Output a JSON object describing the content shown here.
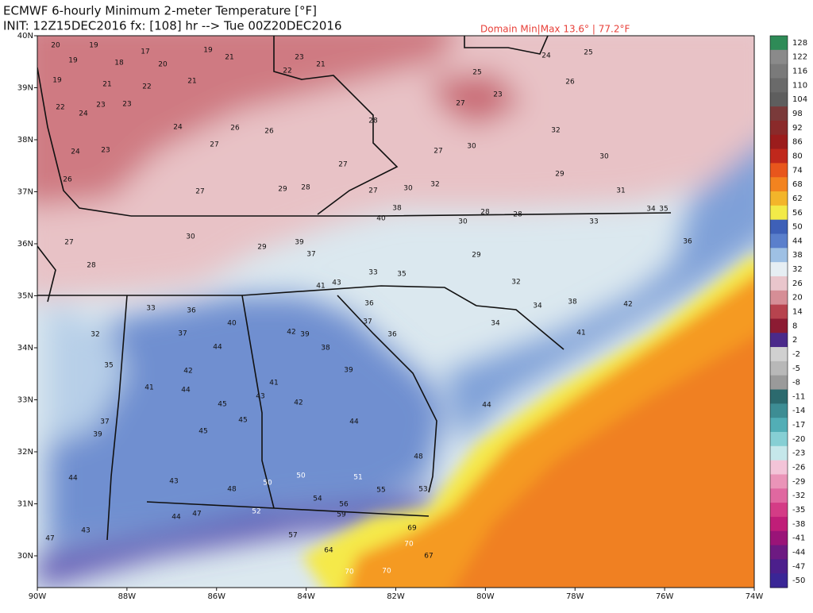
{
  "header": {
    "title": "ECMWF 6-hourly Minimum 2-meter Temperature [°F]",
    "init": "INIT: 12Z15DEC2016 fx: [108] hr --> Tue 00Z20DEC2016",
    "domain": "Domain Min|Max 13.6° | 77.2°F"
  },
  "map": {
    "lat_labels": [
      "40N",
      "39N",
      "38N",
      "37N",
      "36N",
      "35N",
      "34N",
      "33N",
      "32N",
      "31N",
      "30N"
    ],
    "lon_labels": [
      "90W",
      "88W",
      "86W",
      "84W",
      "82W",
      "80W",
      "78W",
      "76W",
      "74W"
    ],
    "stations": [
      20,
      19,
      19,
      18,
      17,
      20,
      19,
      21,
      19,
      21,
      22,
      21,
      22,
      24,
      23,
      23,
      24,
      24,
      23,
      27,
      26,
      26,
      23,
      22,
      21,
      28,
      27,
      30,
      25,
      23,
      27,
      24,
      26,
      25,
      32,
      30,
      31,
      26,
      27,
      27,
      29,
      28,
      27,
      30,
      32,
      28,
      28,
      29,
      33,
      34,
      35,
      36,
      27,
      28,
      30,
      29,
      39,
      37,
      41,
      43,
      40,
      38,
      33,
      35,
      30,
      29,
      32,
      34,
      38,
      42,
      32,
      35,
      33,
      36,
      37,
      40,
      42,
      39,
      38,
      36,
      37,
      36,
      34,
      41,
      44,
      44,
      42,
      41,
      45,
      43,
      42,
      44,
      39,
      41,
      48,
      44,
      37,
      39,
      45,
      43,
      45,
      48,
      50,
      50,
      51,
      55,
      53,
      44,
      54,
      56,
      59,
      52,
      47,
      44,
      57,
      47,
      43,
      64,
      70,
      70,
      69,
      70,
      67
    ]
  },
  "colorbar": {
    "labels": [
      128,
      122,
      116,
      110,
      104,
      98,
      92,
      86,
      80,
      74,
      68,
      62,
      56,
      50,
      44,
      38,
      32,
      26,
      20,
      14,
      8,
      2,
      -2,
      -5,
      -8,
      -11,
      -14,
      -17,
      -20,
      -23,
      -26,
      -29,
      -32,
      -35,
      -38,
      -41,
      -44,
      -47,
      -50
    ]
  }
}
